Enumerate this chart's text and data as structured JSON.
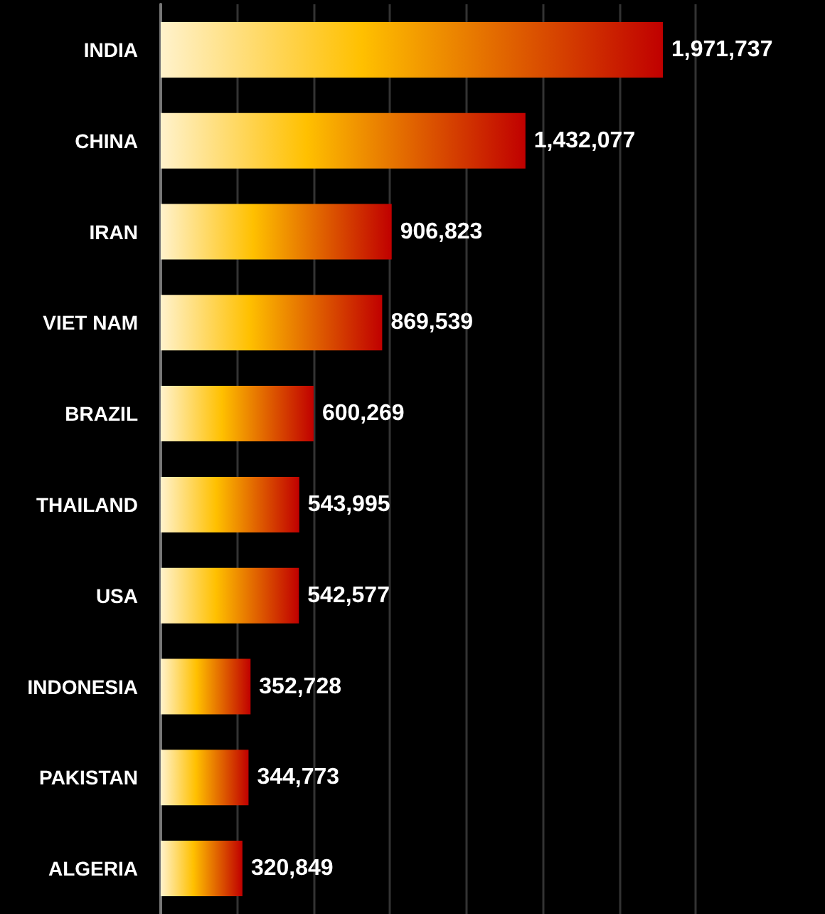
{
  "chart_data": {
    "type": "bar",
    "orientation": "horizontal",
    "categories": [
      "INDIA",
      "CHINA",
      "IRAN",
      "VIET NAM",
      "BRAZIL",
      "THAILAND",
      "USA",
      "INDONESIA",
      "PAKISTAN",
      "ALGERIA"
    ],
    "values": [
      1971737,
      1432077,
      906823,
      869539,
      600269,
      543995,
      542577,
      352728,
      344773,
      320849
    ],
    "value_labels": [
      "1,971,737",
      "1,432,077",
      "906,823",
      "869,539",
      "600,269",
      "543,995",
      "542,577",
      "352,728",
      "344,773",
      "320,849"
    ],
    "color": "#c00000",
    "grid": "x",
    "tick_labels": "y"
  }
}
